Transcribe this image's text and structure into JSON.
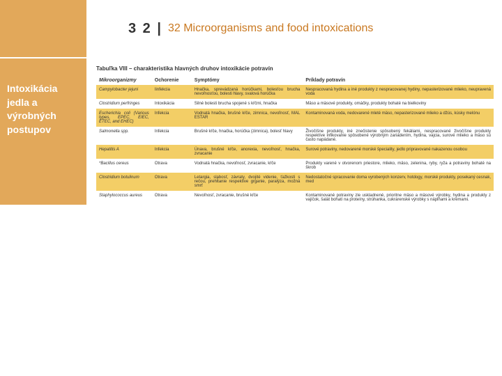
{
  "header": {
    "chapter_number": "3 2 |",
    "chapter_title": "32 Microorganisms and food intoxications"
  },
  "sidebar": {
    "title": "Intoxikácia jedla a výrobných postupov"
  },
  "table": {
    "caption": "Tabuľka VIII – charakteristika hlavných druhov intoxikácie potravín",
    "columns": [
      "Mikroorganizmy",
      "Ochorenie",
      "Symptómy",
      "Príklady potravín"
    ],
    "rows": [
      {
        "micro": "Campylobacter jejuni",
        "och": "Iinfekcia",
        "sym": "Hnačka, sprevádzaná horúčkami, bolesťou brucha nevoľnosťou, bolesti hlavy, svalová horúčka",
        "prk": "Nespracovaná hydina a iné produkty z nespracovanej hydiny, nepasterizované mlieko, neupravená voda"
      },
      {
        "micro": "Clostridium perfringes",
        "och": "Intoxikácia",
        "sym": "Silné bolesti brucha spojené s kŕčmi, hnačka",
        "prk": "Mäso a mäsové produkty, omáčky, produkty bohaté na bielkoviny"
      },
      {
        "micro": "Escherichia coli (Various types, EPEC, EIEC, ETEC, and EHEC)",
        "och": "Infekcia",
        "sym": "Vodnatá hnačka, brušné kŕče, zimnica, nevoľnosť, MAL ESTAR",
        "prk": "Kontaminovaná voda, nedovarené mleté mäso, nepasterizované mlieko a džús, kúsky melónu"
      },
      {
        "micro": "Salmonella spp.",
        "och": "Infekcia",
        "sym": "Brušné kŕče, hnačka, horúčka (zimnica), bolesť hlavy",
        "prk": "Živočíšne produkty, iné znečistenie spôsobený fekáliami, nespracované živočíšne produkty respektíve infikovanie spôsobené výrobným zariadením, hydina, vajcia, surové mlieko a mäso sú často napádané."
      },
      {
        "micro": "Hepatitis A",
        "och": "Infekcia",
        "sym": "Únava, brušné kŕče, anorexia, nevoľnosť, hnačka, zvracanie",
        "prk": "Surové potraviny, nedovarené morské špeciality, jedlo pripravované nakazenou osobou"
      },
      {
        "micro": "*Bacillus cereus",
        "och": "Otrava",
        "sym": "Vodnatá hnačka, nevoľnosť, zvracanie, kŕče",
        "prk": "Produkty varené v otvorenom priestore, mlieko, mäso, zelenina, ryby, ryža a potraviny bohaté na škrob"
      },
      {
        "micro": "Clostridium botulinum",
        "och": "Otrava",
        "sym": "Letargia, slabosť, závraty, dvojité videnie, ťažkosti s rečou, prehĺtanie respektíve grganie, paralýza, možná smrť",
        "prk": "Nedostatočné spracovanie doma vyrobených konzerv, hotdogy, morské produkty, posekaný cesnak, med"
      },
      {
        "micro": "Staphylococcus aureus",
        "och": "Otrava",
        "sym": "Nevoľnosť, zvracanie, brušné kŕče",
        "prk": "Kontaminované potraviny zle uskladnené, prioritne mäso a mäsové výrobky, hydina a produkty z vajíčok, šalát bohatí na proteíny, strúhanka, cukrárenské výrobky s náplňami a krémami."
      }
    ]
  },
  "colors": {
    "accent": "#e2a85a",
    "row_highlight": "#f3ce66",
    "chapter_title": "#c97820"
  }
}
